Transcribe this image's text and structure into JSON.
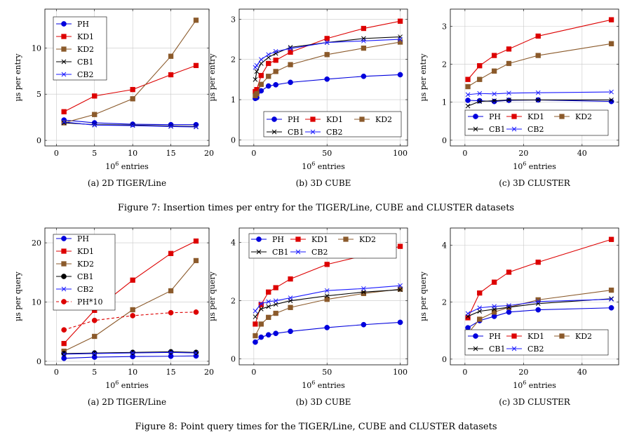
{
  "figures": [
    {
      "caption": "Figure 7: Insertion times per entry for the TIGER/Line, CUBE and CLUSTER datasets",
      "ylabel": "µs per entry",
      "xlabel_base": "10",
      "xlabel_exp": "6",
      "xlabel_rest": " entries"
    },
    {
      "caption": "Figure 8: Point query times for the TIGER/Line, CUBE and CLUSTER datasets",
      "ylabel": "µs per query",
      "xlabel_base": "10",
      "xlabel_exp": "6",
      "xlabel_rest": " entries"
    }
  ],
  "colors": {
    "PH": "#0000dd",
    "KD1": "#dd0000",
    "KD2": "#8b5a2b",
    "CB1": "#000000",
    "CB2": "#1a1aff",
    "PH*10": "#dd0000"
  },
  "chart_data": [
    {
      "type": "line",
      "subcaption": "(a) 2D TIGER/Line",
      "xlim": [
        -1.5,
        20
      ],
      "ylim": [
        -0.6,
        14.2
      ],
      "xticks": [
        0,
        5,
        10,
        15,
        20
      ],
      "yticks": [
        0,
        5,
        10
      ],
      "grid": true,
      "legend_position": "top-left",
      "series": [
        {
          "name": "PH",
          "marker": "circle",
          "x": [
            1,
            5,
            10,
            15,
            18.3
          ],
          "values": [
            2.2,
            1.9,
            1.75,
            1.7,
            1.7
          ]
        },
        {
          "name": "KD1",
          "marker": "square",
          "x": [
            1,
            5,
            10,
            15,
            18.3
          ],
          "values": [
            3.1,
            4.8,
            5.5,
            7.1,
            8.1
          ]
        },
        {
          "name": "KD2",
          "marker": "square",
          "x": [
            1,
            5,
            10,
            15,
            18.3
          ],
          "values": [
            1.9,
            2.8,
            4.5,
            9.1,
            13.0
          ]
        },
        {
          "name": "CB1",
          "marker": "x",
          "x": [
            1,
            5,
            10,
            15,
            18.3
          ],
          "values": [
            1.9,
            1.7,
            1.65,
            1.55,
            1.5
          ]
        },
        {
          "name": "CB2",
          "marker": "x",
          "x": [
            1,
            5,
            10,
            15,
            18.3
          ],
          "values": [
            2.0,
            1.65,
            1.6,
            1.5,
            1.45
          ]
        }
      ]
    },
    {
      "type": "line",
      "subcaption": "(b) 3D CUBE",
      "xlim": [
        -10,
        105
      ],
      "ylim": [
        -0.15,
        3.25
      ],
      "xticks": [
        0,
        50,
        100
      ],
      "yticks": [
        0,
        1,
        2,
        3
      ],
      "grid": true,
      "legend_position": "bottom-right",
      "series": [
        {
          "name": "PH",
          "marker": "circle",
          "x": [
            1,
            2,
            5,
            10,
            15,
            25,
            50,
            75,
            100
          ],
          "values": [
            1.03,
            1.05,
            1.22,
            1.34,
            1.37,
            1.43,
            1.51,
            1.58,
            1.62
          ]
        },
        {
          "name": "KD1",
          "marker": "square",
          "x": [
            1,
            2,
            5,
            10,
            15,
            25,
            50,
            75,
            100
          ],
          "values": [
            1.2,
            1.25,
            1.6,
            1.9,
            1.98,
            2.18,
            2.52,
            2.77,
            2.95
          ]
        },
        {
          "name": "KD2",
          "marker": "square",
          "x": [
            1,
            2,
            5,
            10,
            15,
            25,
            50,
            75,
            100
          ],
          "values": [
            1.1,
            1.15,
            1.38,
            1.58,
            1.7,
            1.87,
            2.12,
            2.28,
            2.43
          ]
        },
        {
          "name": "CB1",
          "marker": "x",
          "x": [
            1,
            2,
            5,
            10,
            15,
            25,
            50,
            75,
            100
          ],
          "values": [
            1.5,
            1.7,
            1.9,
            2.05,
            2.15,
            2.3,
            2.42,
            2.52,
            2.56
          ]
        },
        {
          "name": "CB2",
          "marker": "x",
          "x": [
            1,
            2,
            5,
            10,
            15,
            25,
            50,
            75,
            100
          ],
          "values": [
            1.8,
            1.85,
            2.0,
            2.12,
            2.2,
            2.27,
            2.42,
            2.46,
            2.5
          ]
        }
      ]
    },
    {
      "type": "line",
      "subcaption": "(c) 3D CLUSTER",
      "xlim": [
        -5,
        52.5
      ],
      "ylim": [
        -0.15,
        3.45
      ],
      "xticks": [
        0,
        20,
        40
      ],
      "yticks": [
        0,
        1,
        2,
        3
      ],
      "grid": true,
      "legend_position": "bottom-right",
      "series": [
        {
          "name": "PH",
          "marker": "circle",
          "x": [
            1,
            5,
            10,
            15,
            25,
            50
          ],
          "values": [
            1.05,
            1.04,
            1.02,
            1.05,
            1.06,
            1.02
          ]
        },
        {
          "name": "KD1",
          "marker": "square",
          "x": [
            1,
            5,
            10,
            15,
            25,
            50
          ],
          "values": [
            1.6,
            1.96,
            2.23,
            2.4,
            2.74,
            3.17
          ]
        },
        {
          "name": "KD2",
          "marker": "square",
          "x": [
            1,
            5,
            10,
            15,
            25,
            50
          ],
          "values": [
            1.41,
            1.6,
            1.82,
            2.02,
            2.23,
            2.54
          ]
        },
        {
          "name": "CB1",
          "marker": "x",
          "x": [
            1,
            5,
            10,
            15,
            25,
            50
          ],
          "values": [
            0.9,
            1.02,
            1.04,
            1.06,
            1.06,
            1.06
          ]
        },
        {
          "name": "CB2",
          "marker": "x",
          "x": [
            1,
            5,
            10,
            15,
            25,
            50
          ],
          "values": [
            1.2,
            1.23,
            1.22,
            1.24,
            1.25,
            1.27
          ]
        }
      ]
    },
    {
      "type": "line",
      "subcaption": "(a) 2D TIGER/Line",
      "xlim": [
        -1.5,
        20
      ],
      "ylim": [
        -0.6,
        22.5
      ],
      "xticks": [
        0,
        5,
        10,
        15,
        20
      ],
      "yticks": [
        0,
        10,
        20
      ],
      "grid": true,
      "legend_position": "top-right",
      "series": [
        {
          "name": "PH",
          "marker": "circle",
          "x": [
            1,
            5,
            10,
            15,
            18.3
          ],
          "values": [
            0.5,
            0.7,
            0.8,
            0.85,
            0.9
          ]
        },
        {
          "name": "KD1",
          "marker": "square",
          "x": [
            1,
            5,
            10,
            15,
            18.3
          ],
          "values": [
            3.0,
            8.6,
            13.7,
            18.2,
            20.3
          ]
        },
        {
          "name": "KD2",
          "marker": "square",
          "x": [
            1,
            5,
            10,
            15,
            18.3
          ],
          "values": [
            1.7,
            4.2,
            8.7,
            11.9,
            17.0
          ]
        },
        {
          "name": "CB1",
          "marker": "circle",
          "x": [
            1,
            5,
            10,
            15,
            18.3
          ],
          "values": [
            1.3,
            1.4,
            1.5,
            1.6,
            1.5
          ]
        },
        {
          "name": "CB2",
          "marker": "x",
          "x": [
            1,
            5,
            10,
            15,
            18.3
          ],
          "values": [
            1.2,
            1.3,
            1.4,
            1.5,
            1.4
          ]
        },
        {
          "name": "PH*10",
          "marker": "circle",
          "dashed": true,
          "x": [
            1,
            5,
            10,
            15,
            18.3
          ],
          "values": [
            5.3,
            6.9,
            7.7,
            8.2,
            8.3
          ]
        }
      ]
    },
    {
      "type": "line",
      "subcaption": "(b) 3D CUBE",
      "xlim": [
        -10,
        105
      ],
      "ylim": [
        -0.2,
        4.5
      ],
      "xticks": [
        0,
        50,
        100
      ],
      "yticks": [
        0,
        2,
        4
      ],
      "grid": true,
      "legend_position": "top",
      "series": [
        {
          "name": "PH",
          "marker": "circle",
          "x": [
            1,
            5,
            10,
            15,
            25,
            50,
            75,
            100
          ],
          "values": [
            0.58,
            0.75,
            0.83,
            0.88,
            0.95,
            1.08,
            1.18,
            1.26
          ]
        },
        {
          "name": "KD1",
          "marker": "square",
          "x": [
            1,
            5,
            10,
            15,
            25,
            50,
            75,
            100
          ],
          "values": [
            1.2,
            1.87,
            2.3,
            2.45,
            2.75,
            3.25,
            3.55,
            3.87
          ]
        },
        {
          "name": "KD2",
          "marker": "square",
          "x": [
            1,
            5,
            10,
            15,
            25,
            50,
            75,
            100
          ],
          "values": [
            0.8,
            1.2,
            1.43,
            1.57,
            1.77,
            2.05,
            2.25,
            2.4
          ]
        },
        {
          "name": "CB1",
          "marker": "x",
          "x": [
            1,
            5,
            10,
            15,
            25,
            50,
            75,
            100
          ],
          "values": [
            1.45,
            1.72,
            1.8,
            1.88,
            2.0,
            2.17,
            2.3,
            2.38
          ]
        },
        {
          "name": "CB2",
          "marker": "x",
          "x": [
            1,
            5,
            10,
            15,
            25,
            50,
            75,
            100
          ],
          "values": [
            1.65,
            1.9,
            1.97,
            2.0,
            2.1,
            2.35,
            2.42,
            2.52
          ]
        }
      ]
    },
    {
      "type": "line",
      "subcaption": "(c) 3D CLUSTER",
      "xlim": [
        -5,
        52.5
      ],
      "ylim": [
        -0.2,
        4.6
      ],
      "xticks": [
        0,
        20,
        40
      ],
      "yticks": [
        0,
        2,
        4
      ],
      "grid": true,
      "legend_position": "bottom-right",
      "series": [
        {
          "name": "PH",
          "marker": "circle",
          "x": [
            1,
            5,
            10,
            15,
            25,
            50
          ],
          "values": [
            1.1,
            1.35,
            1.5,
            1.65,
            1.73,
            1.8
          ]
        },
        {
          "name": "KD1",
          "marker": "square",
          "x": [
            1,
            5,
            10,
            15,
            25,
            50
          ],
          "values": [
            1.45,
            2.32,
            2.7,
            3.05,
            3.4,
            4.2
          ]
        },
        {
          "name": "KD2",
          "marker": "square",
          "x": [
            1,
            5,
            10,
            15,
            25,
            50
          ],
          "values": [
            0.9,
            1.4,
            1.65,
            1.82,
            2.08,
            2.42
          ]
        },
        {
          "name": "CB1",
          "marker": "x",
          "x": [
            1,
            5,
            10,
            15,
            25,
            50
          ],
          "values": [
            1.5,
            1.68,
            1.75,
            1.82,
            1.95,
            2.12
          ]
        },
        {
          "name": "CB2",
          "marker": "x",
          "x": [
            1,
            5,
            10,
            15,
            25,
            50
          ],
          "values": [
            1.6,
            1.8,
            1.85,
            1.88,
            2.02,
            2.1
          ]
        }
      ]
    }
  ]
}
